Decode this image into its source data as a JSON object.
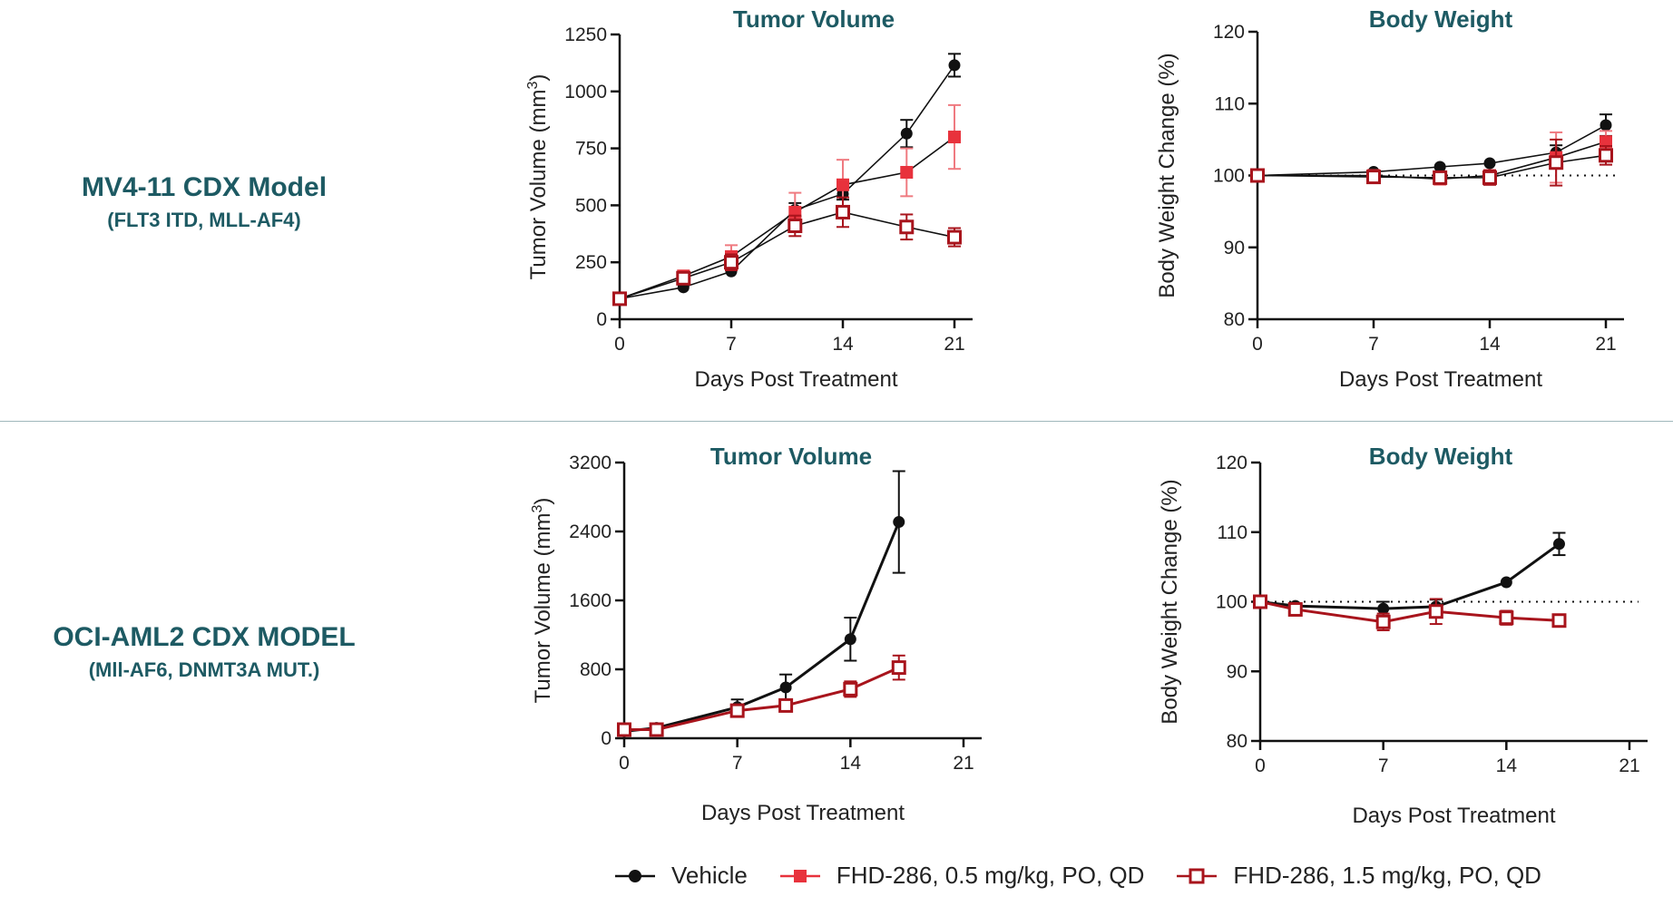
{
  "models": [
    {
      "name": "MV4-11 CDX Model",
      "sub": "(FLT3 ITD, MLL-AF4)"
    },
    {
      "name": "OCI-AML2 CDX MODEL",
      "sub": "(Mll-AF6, DNMT3A MUT.)"
    }
  ],
  "legend": [
    {
      "label": "Vehicle",
      "color": "#111111",
      "marker": "filled-circle"
    },
    {
      "label": "FHD-286, 0.5 mg/kg, PO, QD",
      "color": "#e8323c",
      "marker": "filled-square"
    },
    {
      "label": "FHD-286, 1.5 mg/kg, PO, QD",
      "color": "#a8141c",
      "marker": "open-square"
    }
  ],
  "chart_data": [
    {
      "type": "line",
      "title": "Tumor Volume",
      "xlabel": "Days Post Treatment",
      "ylabel": "Tumor Volume (mm3)",
      "xlim": [
        0,
        21
      ],
      "xticks": [
        0,
        7,
        14,
        21
      ],
      "ylim": [
        0,
        1250
      ],
      "yticks": [
        0,
        250,
        500,
        750,
        1000,
        1250
      ],
      "series": [
        {
          "name": "Vehicle",
          "x": [
            0,
            4,
            7,
            11,
            14,
            18,
            21
          ],
          "y": [
            90,
            140,
            210,
            480,
            550,
            815,
            1115
          ],
          "err": [
            0,
            0,
            0,
            30,
            25,
            60,
            50
          ]
        },
        {
          "name": "FHD-286, 0.5 mg/kg, PO, QD",
          "x": [
            0,
            4,
            7,
            11,
            14,
            18,
            21
          ],
          "y": [
            90,
            190,
            275,
            470,
            590,
            645,
            800
          ],
          "err": [
            0,
            0,
            50,
            85,
            110,
            105,
            140
          ]
        },
        {
          "name": "FHD-286, 1.5 mg/kg, PO, QD",
          "x": [
            0,
            4,
            7,
            11,
            14,
            18,
            21
          ],
          "y": [
            90,
            180,
            250,
            410,
            470,
            405,
            360
          ],
          "err": [
            0,
            0,
            35,
            45,
            65,
            55,
            40
          ]
        }
      ]
    },
    {
      "type": "line",
      "title": "Body Weight",
      "xlabel": "Days Post Treatment",
      "ylabel": "Body Weight Change (%)",
      "xlim": [
        0,
        21
      ],
      "xticks": [
        0,
        7,
        14,
        21
      ],
      "ylim": [
        80,
        120
      ],
      "yticks": [
        80,
        90,
        100,
        110,
        120
      ],
      "reference_line": 100,
      "series": [
        {
          "name": "Vehicle",
          "x": [
            0,
            7,
            11,
            14,
            18,
            21
          ],
          "y": [
            100,
            100.5,
            101.2,
            101.7,
            103.2,
            107
          ],
          "err": [
            0,
            0,
            0,
            0,
            1,
            1.5
          ]
        },
        {
          "name": "FHD-286, 0.5 mg/kg, PO, QD",
          "x": [
            0,
            7,
            11,
            14,
            18,
            21
          ],
          "y": [
            100,
            100,
            99.5,
            100,
            102.5,
            104.7
          ],
          "err": [
            0,
            0,
            0,
            0.5,
            3.5,
            1.5
          ]
        },
        {
          "name": "FHD-286, 1.5 mg/kg, PO, QD",
          "x": [
            0,
            7,
            11,
            14,
            18,
            21
          ],
          "y": [
            100,
            99.8,
            99.7,
            99.7,
            101.8,
            102.8
          ],
          "err": [
            0,
            0,
            0,
            1,
            3.2,
            1.3
          ]
        }
      ]
    },
    {
      "type": "line",
      "title": "Tumor Volume",
      "xlabel": "Days Post Treatment",
      "ylabel": "Tumor Volume (mm3)",
      "xlim": [
        0,
        21
      ],
      "xticks": [
        0,
        7,
        14,
        21
      ],
      "ylim": [
        0,
        3200
      ],
      "yticks": [
        0,
        800,
        1600,
        2400,
        3200
      ],
      "series": [
        {
          "name": "Vehicle",
          "x": [
            0,
            2,
            7,
            10,
            14,
            17
          ],
          "y": [
            80,
            120,
            360,
            590,
            1150,
            2510
          ],
          "err": [
            0,
            0,
            90,
            150,
            250,
            590
          ]
        },
        {
          "name": "FHD-286, 1.5 mg/kg, PO, QD",
          "x": [
            0,
            2,
            7,
            10,
            14,
            17
          ],
          "y": [
            100,
            100,
            320,
            380,
            570,
            820
          ],
          "err": [
            0,
            0,
            40,
            50,
            90,
            140
          ]
        }
      ]
    },
    {
      "type": "line",
      "title": "Body Weight",
      "xlabel": "Days Post Treatment",
      "ylabel": "Body Weight Change (%)",
      "xlim": [
        0,
        21
      ],
      "xticks": [
        0,
        7,
        14,
        21
      ],
      "ylim": [
        80,
        120
      ],
      "yticks": [
        80,
        90,
        100,
        110,
        120
      ],
      "reference_line": 100,
      "series": [
        {
          "name": "Vehicle",
          "x": [
            0,
            2,
            7,
            10,
            14,
            17
          ],
          "y": [
            100,
            99.4,
            99,
            99.3,
            102.8,
            108.3
          ],
          "err": [
            0,
            0,
            1,
            1,
            0,
            1.6
          ]
        },
        {
          "name": "FHD-286, 1.5 mg/kg, PO, QD",
          "x": [
            0,
            2,
            7,
            10,
            14,
            17
          ],
          "y": [
            100,
            98.9,
            97.1,
            98.6,
            97.7,
            97.3
          ],
          "err": [
            0,
            0,
            1.2,
            1.8,
            1,
            0.5
          ]
        }
      ]
    }
  ]
}
